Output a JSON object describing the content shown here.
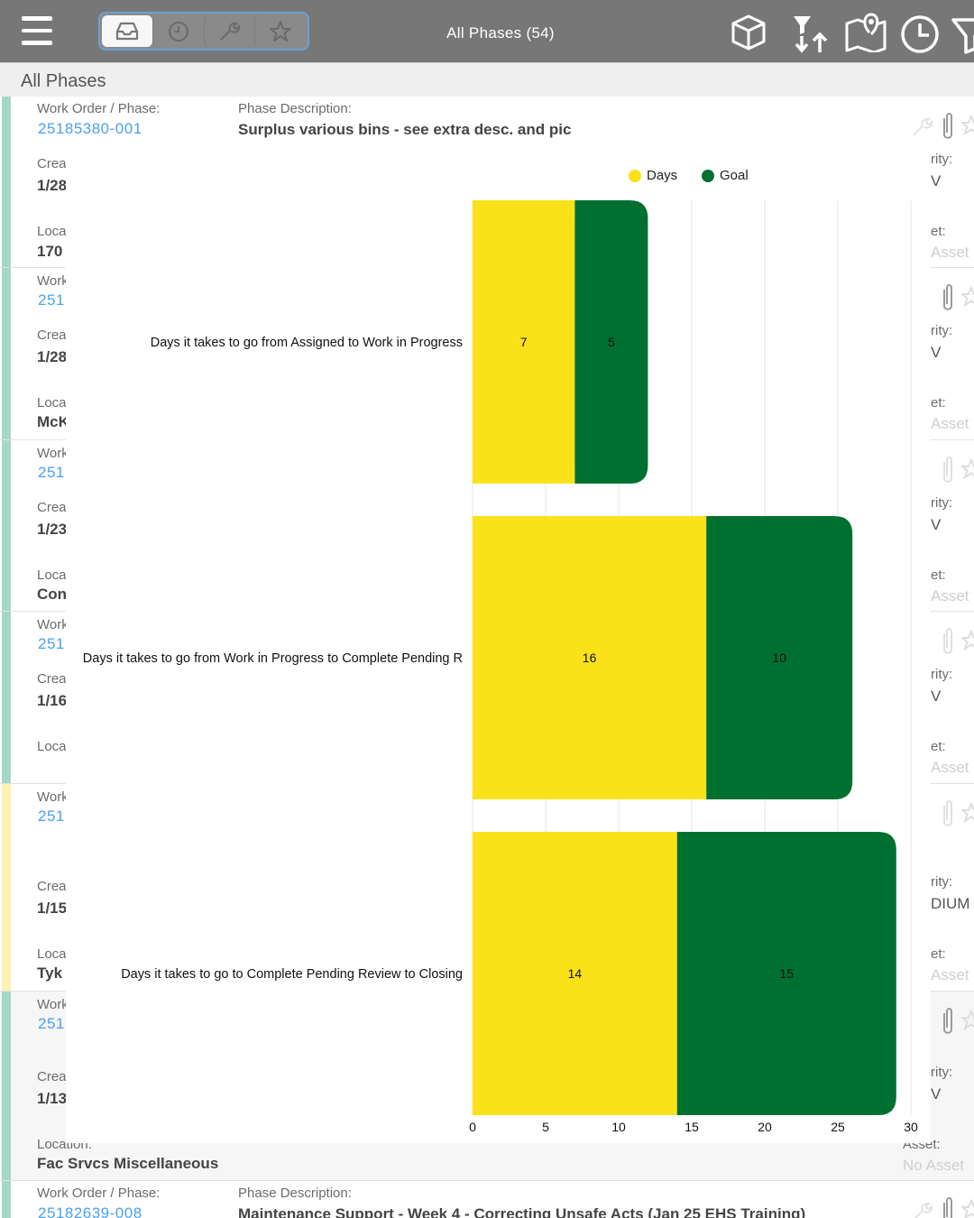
{
  "topbar": {
    "title": "All Phases (54)",
    "tabs": [
      {
        "icon": "inbox-icon",
        "active": true
      },
      {
        "icon": "clock-icon",
        "active": false
      },
      {
        "icon": "wrench-icon",
        "active": false
      },
      {
        "icon": "star-icon",
        "active": false
      }
    ],
    "right_icons": [
      "box-icon",
      "sort-icon",
      "map-pin-icon",
      "clock-icon",
      "filter-icon"
    ]
  },
  "section": {
    "title": "All Phases"
  },
  "list": {
    "labels": {
      "work_order": "Work Order / Phase:",
      "phase_desc": "Phase Description:",
      "created_partial": "Crea",
      "location_partial": "Loca",
      "work_partial": "Work",
      "location_full": "Location:",
      "priority_partial": "rity:",
      "asset_partial": "et:",
      "asset_full": "Asset:"
    },
    "rows": [
      {
        "stripe": "#a6d8c6",
        "wo": "25185380-001",
        "desc": "Surplus various bins - see extra desc. and pic",
        "created": "1/28",
        "location": "170",
        "priority": "V",
        "asset": "Asset"
      },
      {
        "stripe": "#a6d8c6",
        "wo": "251",
        "created": "1/28",
        "location": "McK",
        "priority": "V",
        "asset": "Asset"
      },
      {
        "stripe": "#a6d8c6",
        "wo": "251",
        "created": "1/23",
        "location": "Con",
        "priority": "V",
        "asset": "Asset"
      },
      {
        "stripe": "#a6d8c6",
        "wo": "251",
        "created": "1/16",
        "location": "",
        "priority": "V",
        "asset": "Asset"
      },
      {
        "stripe": "#fdf2b3",
        "wo": "251",
        "created": "1/15",
        "location": "Tyk",
        "priority": "DIUM",
        "asset": "Asset"
      },
      {
        "stripe": "#a6d8c6",
        "wo": "251",
        "created": "1/13",
        "location": "Fac Srvcs Miscellaneous",
        "priority": "V",
        "asset": "No Asset"
      },
      {
        "stripe": "#a6d8c6",
        "wo": "25182639-008",
        "desc": "Maintenance Support - Week 4 - Correcting Unsafe Acts (Jan 25 EHS Training)"
      }
    ]
  },
  "chart_data": {
    "type": "bar",
    "orientation": "horizontal",
    "stacked": true,
    "categories": [
      "Days it takes to go from Assigned to Work in Progress",
      "Days it takes to go from Work in Progress to Complete Pending R",
      "Days it takes to go to Complete Pending Review to Closing"
    ],
    "series": [
      {
        "name": "Days",
        "color": "#fae21a",
        "values": [
          7,
          16,
          14
        ]
      },
      {
        "name": "Goal",
        "color": "#007030",
        "values": [
          5,
          10,
          15
        ]
      }
    ],
    "xlim": [
      0,
      30
    ],
    "xticks": [
      "0",
      "5",
      "10",
      "15",
      "20",
      "25",
      "30"
    ],
    "grid": true,
    "legend_position": "top-right"
  }
}
